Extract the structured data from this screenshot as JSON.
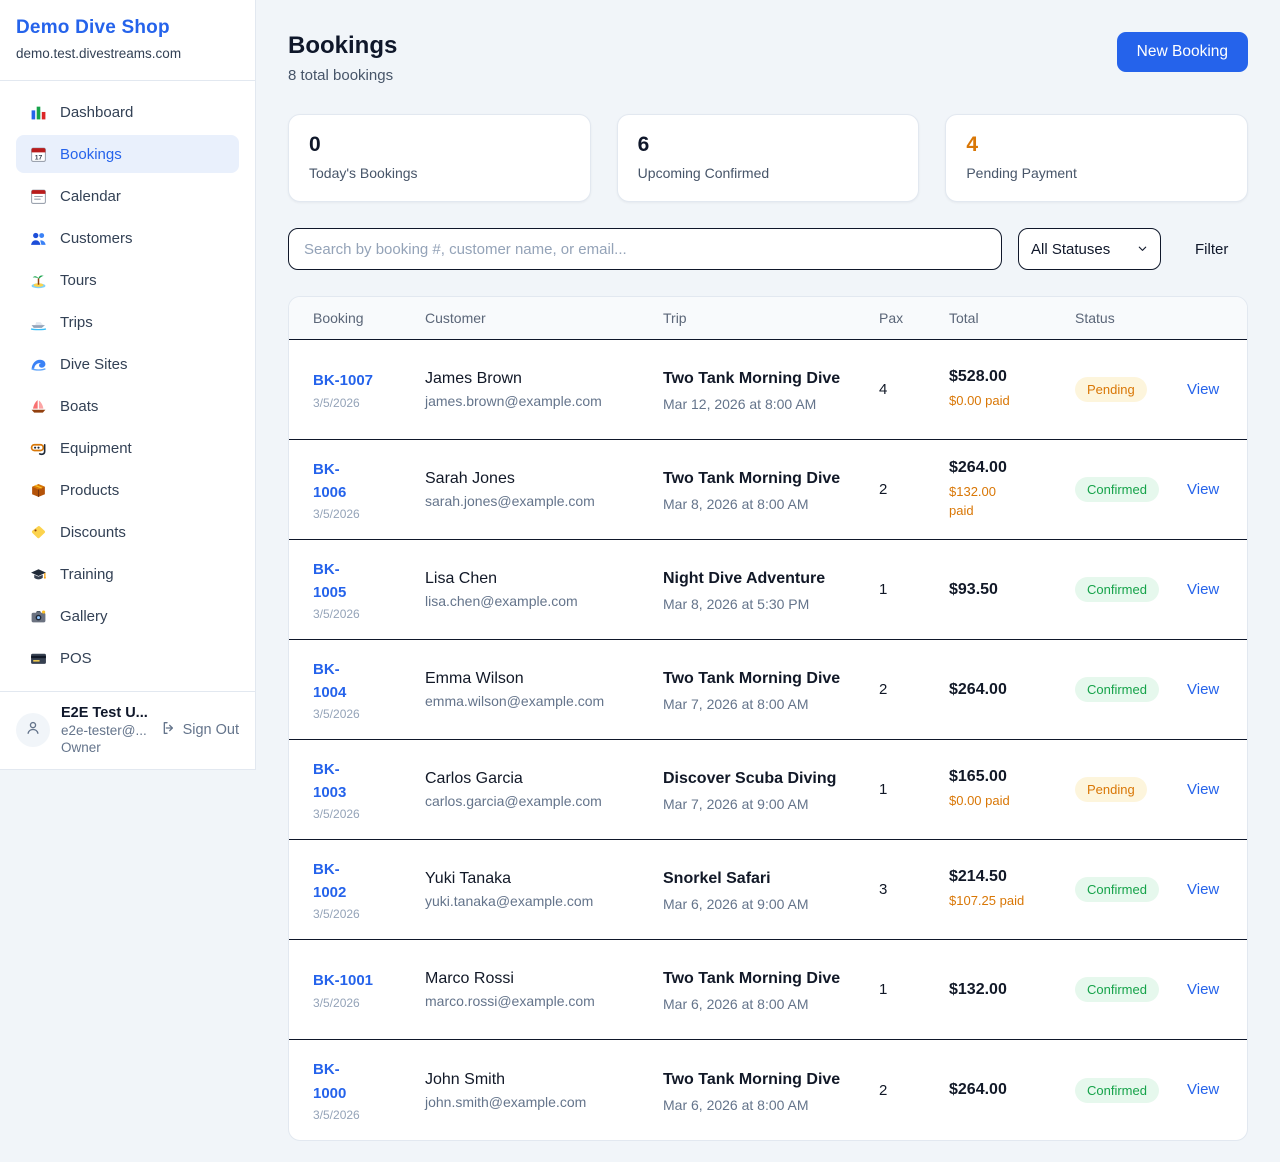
{
  "brand": {
    "name": "Demo Dive Shop",
    "domain": "demo.test.divestreams.com"
  },
  "sidebar": {
    "items": [
      {
        "label": "Dashboard",
        "icon": "bar-chart",
        "active": false
      },
      {
        "label": "Bookings",
        "icon": "calendar-date",
        "active": true
      },
      {
        "label": "Calendar",
        "icon": "calendar",
        "active": false
      },
      {
        "label": "Customers",
        "icon": "users",
        "active": false
      },
      {
        "label": "Tours",
        "icon": "island",
        "active": false
      },
      {
        "label": "Trips",
        "icon": "speedboat",
        "active": false
      },
      {
        "label": "Dive Sites",
        "icon": "wave",
        "active": false
      },
      {
        "label": "Boats",
        "icon": "sailboat",
        "active": false
      },
      {
        "label": "Equipment",
        "icon": "diving-mask",
        "active": false
      },
      {
        "label": "Products",
        "icon": "package",
        "active": false
      },
      {
        "label": "Discounts",
        "icon": "tag",
        "active": false
      },
      {
        "label": "Training",
        "icon": "graduation-cap",
        "active": false
      },
      {
        "label": "Gallery",
        "icon": "camera",
        "active": false
      },
      {
        "label": "POS",
        "icon": "credit-card",
        "active": false
      }
    ],
    "user": {
      "name": "E2E Test U...",
      "email": "e2e-tester@...",
      "role": "Owner",
      "sign_out_label": "Sign Out"
    }
  },
  "header": {
    "title": "Bookings",
    "subtitle": "8 total bookings",
    "new_booking_label": "New Booking"
  },
  "stats": [
    {
      "value": "0",
      "label": "Today's Bookings",
      "highlight": false
    },
    {
      "value": "6",
      "label": "Upcoming Confirmed",
      "highlight": false
    },
    {
      "value": "4",
      "label": "Pending Payment",
      "highlight": true
    }
  ],
  "filters": {
    "search_placeholder": "Search by booking #, customer name, or email...",
    "status_select_value": "All Statuses",
    "filter_label": "Filter"
  },
  "table": {
    "columns": [
      "Booking",
      "Customer",
      "Trip",
      "Pax",
      "Total",
      "Status"
    ],
    "view_label": "View",
    "rows": [
      {
        "id": "BK-1007",
        "date": "3/5/2026",
        "customer": "James Brown",
        "email": "james.brown@example.com",
        "trip": "Two Tank Morning Dive",
        "when": "Mar 12, 2026 at 8:00 AM",
        "pax": "4",
        "total": "$528.00",
        "paid": "$0.00 paid",
        "status": "Pending"
      },
      {
        "id": "BK-\n1006",
        "date": "3/5/2026",
        "customer": "Sarah Jones",
        "email": "sarah.jones@example.com",
        "trip": "Two Tank Morning Dive",
        "when": "Mar 8, 2026 at 8:00 AM",
        "pax": "2",
        "total": "$264.00",
        "paid": "$132.00\npaid",
        "status": "Confirmed"
      },
      {
        "id": "BK-\n1005",
        "date": "3/5/2026",
        "customer": "Lisa Chen",
        "email": "lisa.chen@example.com",
        "trip": "Night Dive Adventure",
        "when": "Mar 8, 2026 at 5:30 PM",
        "pax": "1",
        "total": "$93.50",
        "paid": "",
        "status": "Confirmed"
      },
      {
        "id": "BK-\n1004",
        "date": "3/5/2026",
        "customer": "Emma Wilson",
        "email": "emma.wilson@example.com",
        "trip": "Two Tank Morning Dive",
        "when": "Mar 7, 2026 at 8:00 AM",
        "pax": "2",
        "total": "$264.00",
        "paid": "",
        "status": "Confirmed"
      },
      {
        "id": "BK-\n1003",
        "date": "3/5/2026",
        "customer": "Carlos Garcia",
        "email": "carlos.garcia@example.com",
        "trip": "Discover Scuba Diving",
        "when": "Mar 7, 2026 at 9:00 AM",
        "pax": "1",
        "total": "$165.00",
        "paid": "$0.00 paid",
        "status": "Pending"
      },
      {
        "id": "BK-\n1002",
        "date": "3/5/2026",
        "customer": "Yuki Tanaka",
        "email": "yuki.tanaka@example.com",
        "trip": "Snorkel Safari",
        "when": "Mar 6, 2026 at 9:00 AM",
        "pax": "3",
        "total": "$214.50",
        "paid": "$107.25 paid",
        "status": "Confirmed"
      },
      {
        "id": "BK-1001",
        "date": "3/5/2026",
        "customer": "Marco Rossi",
        "email": "marco.rossi@example.com",
        "trip": "Two Tank Morning Dive",
        "when": "Mar 6, 2026 at 8:00 AM",
        "pax": "1",
        "total": "$132.00",
        "paid": "",
        "status": "Confirmed"
      },
      {
        "id": "BK-\n1000",
        "date": "3/5/2026",
        "customer": "John Smith",
        "email": "john.smith@example.com",
        "trip": "Two Tank Morning Dive",
        "when": "Mar 6, 2026 at 8:00 AM",
        "pax": "2",
        "total": "$264.00",
        "paid": "",
        "status": "Confirmed"
      }
    ]
  },
  "colors": {
    "accent": "#2563eb",
    "page_background": "#f1f5f9",
    "pending_text": "#d97706",
    "pending_background": "#fdf5dc",
    "confirmed_text": "#16a34a",
    "confirmed_background": "#e6f8ed"
  }
}
